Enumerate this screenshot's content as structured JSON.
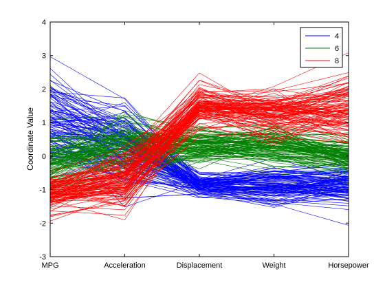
{
  "chart_data": {
    "type": "line",
    "subtype": "parallel-coordinates",
    "title": "",
    "xlabel": "",
    "ylabel": "Coordinate Value",
    "categories": [
      "MPG",
      "Acceleration",
      "Displacement",
      "Weight",
      "Horsepower"
    ],
    "ylim": [
      -3,
      4
    ],
    "yticks": [
      -3,
      -2,
      -1,
      0,
      1,
      2,
      3,
      4
    ],
    "grid": false,
    "legend_position": "top-right",
    "series": [
      {
        "name": "4",
        "color": "#0000ff",
        "profile_mean": [
          0.95,
          0.35,
          -0.85,
          -0.85,
          -0.85
        ],
        "profile_spread": [
          0.75,
          0.6,
          0.18,
          0.3,
          0.3
        ]
      },
      {
        "name": "6",
        "color": "#008000",
        "profile_mean": [
          -0.2,
          0.25,
          0.3,
          0.35,
          0.0
        ],
        "profile_spread": [
          0.45,
          0.45,
          0.25,
          0.3,
          0.25
        ]
      },
      {
        "name": "8",
        "color": "#ff0000",
        "profile_mean": [
          -1.1,
          -0.75,
          1.5,
          1.3,
          1.4
        ],
        "profile_spread": [
          0.3,
          0.45,
          0.35,
          0.4,
          0.5
        ]
      }
    ]
  }
}
